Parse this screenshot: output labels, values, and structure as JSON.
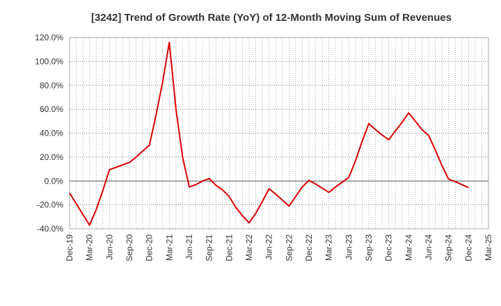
{
  "chart_data": {
    "type": "line",
    "title": "[3242]  Trend of Growth Rate (YoY) of 12-Month Moving Sum of Revenues",
    "xlabel": "",
    "ylabel": "",
    "ylim": [
      -40,
      120
    ],
    "y_ticks": [
      "120.0%",
      "100.0%",
      "80.0%",
      "60.0%",
      "40.0%",
      "20.0%",
      "0.0%",
      "-20.0%",
      "-40.0%"
    ],
    "x_ticks": [
      "Dec-19",
      "Mar-20",
      "Jun-20",
      "Sep-20",
      "Dec-20",
      "Mar-21",
      "Jun-21",
      "Sep-21",
      "Dec-21",
      "Mar-22",
      "Jun-22",
      "Sep-22",
      "Dec-22",
      "Mar-23",
      "Jun-23",
      "Sep-23",
      "Dec-23",
      "Mar-24",
      "Jun-24",
      "Sep-24",
      "Dec-24",
      "Mar-25"
    ],
    "grid": true,
    "line_color": "#dd0000",
    "series": [
      {
        "name": "",
        "x": [
          "Dec-19",
          "Jan-20",
          "Feb-20",
          "Mar-20",
          "Apr-20",
          "May-20",
          "Jun-20",
          "Jul-20",
          "Aug-20",
          "Sep-20",
          "Oct-20",
          "Nov-20",
          "Dec-20",
          "Jan-21",
          "Feb-21",
          "Mar-21",
          "Apr-21",
          "May-21",
          "Jun-21",
          "Jul-21",
          "Aug-21",
          "Sep-21",
          "Oct-21",
          "Nov-21",
          "Dec-21",
          "Jan-22",
          "Feb-22",
          "Mar-22",
          "Apr-22",
          "May-22",
          "Jun-22",
          "Jul-22",
          "Aug-22",
          "Sep-22",
          "Oct-22",
          "Nov-22",
          "Dec-22",
          "Jan-23",
          "Feb-23",
          "Mar-23",
          "Apr-23",
          "May-23",
          "Jun-23",
          "Jul-23",
          "Aug-23",
          "Sep-23",
          "Oct-23",
          "Nov-23",
          "Dec-23",
          "Jan-24",
          "Feb-24",
          "Mar-24",
          "Apr-24",
          "May-24",
          "Jun-24",
          "Jul-24",
          "Aug-24",
          "Sep-24",
          "Oct-24",
          "Nov-24",
          "Dec-24"
        ],
        "values": [
          -10,
          -19,
          -28,
          -37,
          -24,
          -8,
          9.5,
          11.5,
          13.5,
          15.5,
          20,
          25,
          30,
          55,
          83,
          116,
          60,
          20,
          -5,
          -3,
          0,
          2,
          -3.5,
          -7.5,
          -13,
          -22,
          -29,
          -35,
          -27,
          -17,
          -6.5,
          -11,
          -16,
          -21,
          -13,
          -5,
          0.5,
          -2.5,
          -6,
          -9.5,
          -5,
          -1,
          3,
          17,
          33,
          48,
          43,
          38.5,
          34.5,
          42,
          49,
          57,
          50,
          43,
          38,
          26,
          13,
          1.5,
          -0.5,
          -3,
          -5.5
        ]
      }
    ]
  }
}
